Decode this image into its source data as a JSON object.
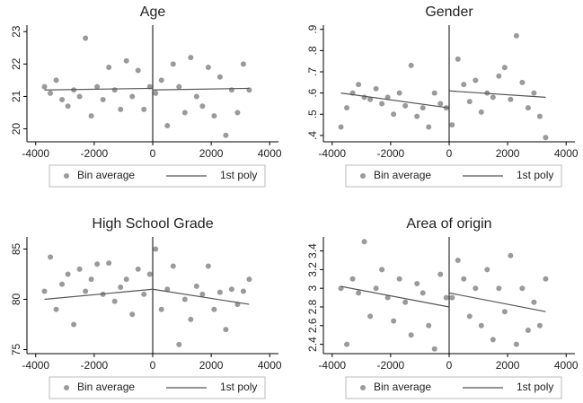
{
  "chart_data": [
    {
      "type": "scatter",
      "title": "Age",
      "xlim": [
        -4300,
        4300
      ],
      "xticks": [
        -4000,
        -2000,
        0,
        2000,
        4000
      ],
      "ylim": [
        19.6,
        23.2
      ],
      "yticks": [
        20,
        21,
        22,
        23
      ],
      "vline": 0,
      "series": [
        {
          "name": "Bin average",
          "color": "#9a9a9a",
          "type": "scatter",
          "x": [
            -3700,
            -3500,
            -3300,
            -3100,
            -2900,
            -2700,
            -2500,
            -2300,
            -2100,
            -1900,
            -1700,
            -1500,
            -1300,
            -1100,
            -900,
            -700,
            -500,
            -300,
            -100,
            100,
            300,
            500,
            700,
            900,
            1100,
            1300,
            1500,
            1700,
            1900,
            2100,
            2300,
            2500,
            2700,
            2900,
            3100,
            3300
          ],
          "values": [
            21.3,
            21.1,
            21.5,
            20.9,
            20.7,
            21.2,
            21.0,
            22.8,
            20.4,
            21.3,
            20.9,
            21.9,
            21.2,
            20.6,
            22.1,
            21.0,
            21.8,
            20.6,
            21.3,
            21.1,
            21.5,
            20.1,
            22.0,
            21.3,
            20.5,
            22.2,
            21.0,
            20.7,
            21.9,
            20.4,
            21.6,
            19.8,
            21.2,
            20.5,
            22.0,
            21.2
          ]
        },
        {
          "name": "1st poly",
          "color": "#555555",
          "type": "line",
          "x": [
            -3700,
            0,
            0,
            0,
            3300
          ],
          "values": [
            21.2,
            21.25,
            null,
            21.2,
            21.25
          ]
        }
      ]
    },
    {
      "type": "scatter",
      "title": "Gender",
      "xlim": [
        -4300,
        4300
      ],
      "xticks": [
        -4000,
        -2000,
        0,
        2000,
        4000
      ],
      "ylim": [
        0.37,
        0.92
      ],
      "yticks": [
        {
          "value": 0.4,
          "label": ".4"
        },
        {
          "value": 0.5,
          "label": ".5"
        },
        {
          "value": 0.6,
          "label": ".6"
        },
        {
          "value": 0.7,
          "label": ".7"
        },
        {
          "value": 0.8,
          "label": ".8"
        },
        {
          "value": 0.9,
          "label": ".9"
        }
      ],
      "vline": 0,
      "series": [
        {
          "name": "Bin average",
          "color": "#9a9a9a",
          "type": "scatter",
          "x": [
            -3700,
            -3500,
            -3300,
            -3100,
            -2900,
            -2700,
            -2500,
            -2300,
            -2100,
            -1900,
            -1700,
            -1500,
            -1300,
            -1100,
            -900,
            -700,
            -500,
            -300,
            -100,
            100,
            300,
            500,
            700,
            900,
            1100,
            1300,
            1500,
            1700,
            1900,
            2100,
            2300,
            2500,
            2700,
            2900,
            3100,
            3300
          ],
          "values": [
            0.44,
            0.53,
            0.6,
            0.64,
            0.58,
            0.57,
            0.62,
            0.55,
            0.58,
            0.5,
            0.6,
            0.54,
            0.73,
            0.49,
            0.53,
            0.44,
            0.6,
            0.55,
            0.53,
            0.45,
            0.76,
            0.64,
            0.56,
            0.66,
            0.51,
            0.6,
            0.58,
            0.68,
            0.72,
            0.57,
            0.87,
            0.65,
            0.53,
            0.6,
            0.49,
            0.39
          ]
        },
        {
          "name": "1st poly",
          "color": "#555555",
          "type": "line",
          "x": [
            -3700,
            0,
            0,
            0,
            3300
          ],
          "values": [
            0.6,
            0.53,
            null,
            0.61,
            0.58
          ]
        }
      ]
    },
    {
      "type": "scatter",
      "title": "High School Grade",
      "xlim": [
        -4300,
        4300
      ],
      "xticks": [
        -4000,
        -2000,
        0,
        2000,
        4000
      ],
      "ylim": [
        74.6,
        86.2
      ],
      "yticks": [
        75,
        80,
        85
      ],
      "vline": 0,
      "series": [
        {
          "name": "Bin average",
          "color": "#9a9a9a",
          "type": "scatter",
          "x": [
            -3700,
            -3500,
            -3300,
            -3100,
            -2900,
            -2700,
            -2500,
            -2300,
            -2100,
            -1900,
            -1700,
            -1500,
            -1300,
            -1100,
            -900,
            -700,
            -500,
            -300,
            -100,
            100,
            300,
            500,
            700,
            900,
            1100,
            1300,
            1500,
            1700,
            1900,
            2100,
            2300,
            2500,
            2700,
            2900,
            3100,
            3300
          ],
          "values": [
            80.8,
            84.2,
            79.0,
            81.5,
            82.5,
            77.5,
            83.0,
            80.8,
            82.0,
            83.5,
            80.5,
            83.6,
            79.8,
            81.2,
            82.0,
            78.5,
            83.0,
            80.5,
            82.5,
            85.0,
            79.0,
            81.0,
            83.3,
            75.5,
            80.0,
            78.0,
            81.3,
            80.5,
            83.3,
            79.0,
            80.7,
            77.0,
            81.0,
            79.5,
            80.8,
            82.0
          ]
        },
        {
          "name": "1st poly",
          "color": "#555555",
          "type": "line",
          "x": [
            -3700,
            0,
            0,
            0,
            3300
          ],
          "values": [
            80.0,
            81.0,
            null,
            81.0,
            79.5
          ]
        }
      ]
    },
    {
      "type": "scatter",
      "title": "Area of origin",
      "xlim": [
        -4300,
        4300
      ],
      "xticks": [
        -4000,
        -2000,
        0,
        2000,
        4000
      ],
      "ylim": [
        2.3,
        3.55
      ],
      "yticks": [
        2.4,
        2.6,
        2.8,
        3,
        3.2,
        3.4
      ],
      "vline": 0,
      "series": [
        {
          "name": "Bin average",
          "color": "#9a9a9a",
          "type": "scatter",
          "x": [
            -3700,
            -3500,
            -3300,
            -3100,
            -2900,
            -2700,
            -2500,
            -2300,
            -2100,
            -1900,
            -1700,
            -1500,
            -1300,
            -1100,
            -900,
            -700,
            -500,
            -300,
            -100,
            100,
            300,
            500,
            700,
            900,
            1100,
            1300,
            1500,
            1700,
            1900,
            2100,
            2300,
            2500,
            2700,
            2900,
            3100,
            3300
          ],
          "values": [
            3.0,
            2.4,
            3.1,
            2.95,
            3.5,
            2.7,
            3.0,
            3.2,
            2.9,
            2.65,
            3.1,
            2.85,
            2.5,
            3.05,
            2.95,
            2.6,
            2.35,
            3.15,
            2.9,
            2.9,
            3.3,
            3.1,
            2.7,
            3.0,
            2.6,
            3.2,
            2.45,
            3.0,
            2.75,
            3.35,
            2.4,
            3.0,
            2.55,
            2.85,
            2.6,
            3.1
          ]
        },
        {
          "name": "1st poly",
          "color": "#555555",
          "type": "line",
          "x": [
            -3700,
            0,
            0,
            0,
            3300
          ],
          "values": [
            3.02,
            2.8,
            null,
            2.95,
            2.75
          ]
        }
      ]
    }
  ]
}
